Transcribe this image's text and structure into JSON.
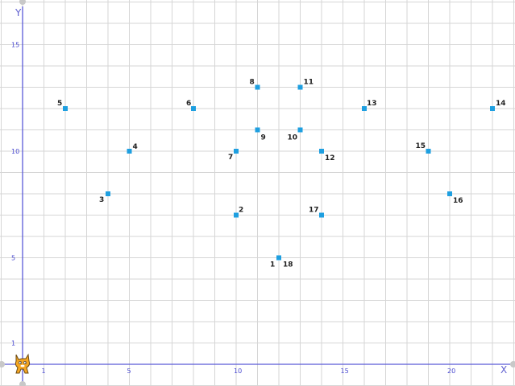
{
  "chart_data": {
    "type": "scatter",
    "xlabel": "X",
    "ylabel": "Y",
    "xlim": [
      0,
      23.3
    ],
    "ylim": [
      0,
      17.3
    ],
    "grid": true,
    "x_ticks": [
      "1",
      "5",
      "10",
      "15",
      "20"
    ],
    "x_tick_values": [
      1,
      5,
      10,
      15,
      20
    ],
    "y_ticks": [
      "1",
      "5",
      "10",
      "15"
    ],
    "y_tick_values": [
      1,
      5,
      10,
      15
    ],
    "points": [
      {
        "label": "1",
        "x": 12,
        "y": 5
      },
      {
        "label": "2",
        "x": 10,
        "y": 7
      },
      {
        "label": "3",
        "x": 4,
        "y": 8
      },
      {
        "label": "4",
        "x": 5,
        "y": 10
      },
      {
        "label": "5",
        "x": 2,
        "y": 12
      },
      {
        "label": "6",
        "x": 8,
        "y": 12
      },
      {
        "label": "7",
        "x": 10,
        "y": 10
      },
      {
        "label": "8",
        "x": 11,
        "y": 13
      },
      {
        "label": "9",
        "x": 11,
        "y": 11
      },
      {
        "label": "10",
        "x": 13,
        "y": 11
      },
      {
        "label": "11",
        "x": 13,
        "y": 13
      },
      {
        "label": "12",
        "x": 14,
        "y": 10
      },
      {
        "label": "13",
        "x": 16,
        "y": 12
      },
      {
        "label": "14",
        "x": 22,
        "y": 12
      },
      {
        "label": "15",
        "x": 19,
        "y": 10
      },
      {
        "label": "16",
        "x": 20,
        "y": 8
      },
      {
        "label": "17",
        "x": 14,
        "y": 7
      },
      {
        "label": "18",
        "x": 12,
        "y": 5
      }
    ]
  },
  "colors": {
    "grid": "#d6d6d6",
    "axis": "#5a5ad8",
    "marker": "#1e9fe0",
    "label": "#222222"
  },
  "sprite": {
    "icon": "cat-sprite-icon"
  }
}
